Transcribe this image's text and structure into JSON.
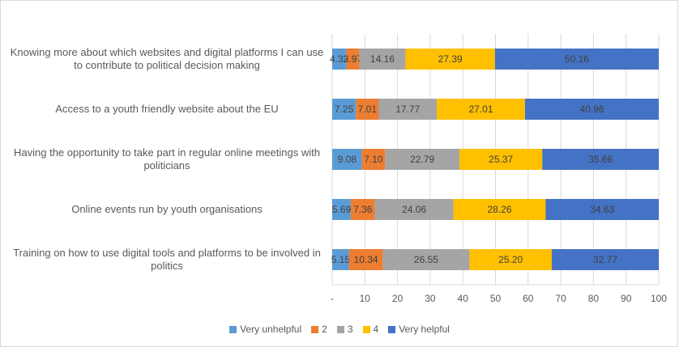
{
  "chart_data": {
    "type": "stacked_bar_horizontal",
    "categories": [
      "Knowing more about which websites and digital platforms I can use to contribute to political decision making",
      "Access to a youth friendly website about the EU",
      "Having the opportunity to take part in regular online meetings with politicians",
      "Online events run by youth organisations",
      "Training on how to use digital tools and platforms to be involved in politics"
    ],
    "series": [
      {
        "name": "Very unhelpful",
        "color": "#5b9bd5",
        "values": [
          4.32,
          7.25,
          9.08,
          5.69,
          5.15
        ],
        "value_labels": [
          "4.32",
          "7.25",
          "9.08",
          "5.69",
          "5.15"
        ]
      },
      {
        "name": "2",
        "color": "#ed7d31",
        "values": [
          3.97,
          7.01,
          7.1,
          7.36,
          10.34
        ],
        "value_labels": [
          "3.97",
          "7.01",
          "7.10",
          "7.36",
          "10.34"
        ]
      },
      {
        "name": "3",
        "color": "#a5a5a5",
        "values": [
          14.16,
          17.77,
          22.79,
          24.06,
          26.55
        ],
        "value_labels": [
          "14.16",
          "17.77",
          "22.79",
          "24.06",
          "26.55"
        ]
      },
      {
        "name": "4",
        "color": "#ffc000",
        "values": [
          27.39,
          27.01,
          25.37,
          28.26,
          25.2
        ],
        "value_labels": [
          "27.39",
          "27.01",
          "25.37",
          "28.26",
          "25.20"
        ]
      },
      {
        "name": "Very helpful",
        "color": "#4472c4",
        "values": [
          50.16,
          40.96,
          35.66,
          34.63,
          32.77
        ],
        "value_labels": [
          "50.16",
          "40.96",
          "35.66",
          "34.63",
          "32.77"
        ]
      }
    ],
    "xlim": [
      0,
      100
    ],
    "xticks": [
      {
        "value": 0,
        "label": "-"
      },
      10,
      20,
      30,
      40,
      50,
      60,
      70,
      80,
      90,
      100
    ],
    "grid": true,
    "legend": "bottom"
  }
}
